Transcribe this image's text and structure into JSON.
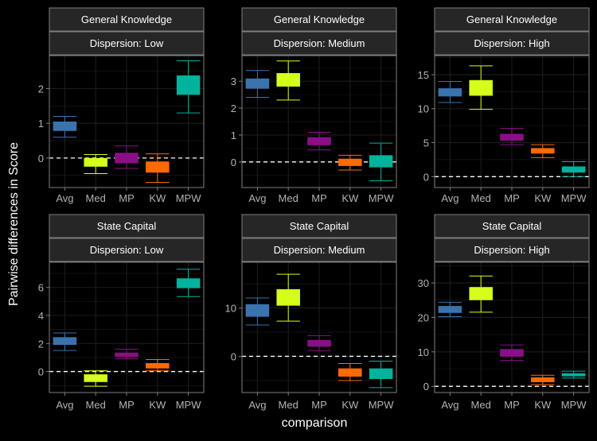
{
  "figure": {
    "ylabel": "Pairwise differences in Score",
    "xlabel": "comparison"
  },
  "colors": {
    "background": "#000000",
    "panel_border": "#7f7f7f",
    "strip_fill": "#262626",
    "strip_text": "#ffffff",
    "grid": "#1c1c1c",
    "tick_text": "#b3b3b3",
    "axis_title": "#ffffff",
    "zero_line": "#ffffff",
    "Avg": "#3a73ad",
    "Med": "#d4ff1a",
    "MP": "#8c0e86",
    "KW": "#ff6a00",
    "MPW": "#00b39c"
  },
  "chart_data": [
    {
      "type": "boxplot",
      "strip_top": "General Knowledge",
      "strip_bottom": "Dispersion: Low",
      "categories": [
        "Avg",
        "Med",
        "MP",
        "KW",
        "MPW"
      ],
      "ylim": [
        -0.85,
        2.95
      ],
      "yticks": [
        0,
        1,
        2
      ],
      "boxes": [
        {
          "min": 0.6,
          "q1": 0.78,
          "median": 0.93,
          "q3": 1.05,
          "max": 1.2
        },
        {
          "min": -0.45,
          "q1": -0.25,
          "median": -0.1,
          "q3": 0.0,
          "max": 0.1
        },
        {
          "min": -0.3,
          "q1": -0.15,
          "median": 0.05,
          "q3": 0.15,
          "max": 0.35
        },
        {
          "min": -0.7,
          "q1": -0.42,
          "median": -0.2,
          "q3": -0.1,
          "max": 0.12
        },
        {
          "min": 1.3,
          "q1": 1.82,
          "median": 2.15,
          "q3": 2.38,
          "max": 2.8
        }
      ]
    },
    {
      "type": "boxplot",
      "strip_top": "General Knowledge",
      "strip_bottom": "Dispersion: Medium",
      "categories": [
        "Avg",
        "Med",
        "MP",
        "KW",
        "MPW"
      ],
      "ylim": [
        -0.95,
        3.95
      ],
      "yticks": [
        0,
        1,
        2,
        3
      ],
      "boxes": [
        {
          "min": 2.4,
          "q1": 2.72,
          "median": 2.95,
          "q3": 3.1,
          "max": 3.4
        },
        {
          "min": 2.3,
          "q1": 2.8,
          "median": 3.0,
          "q3": 3.3,
          "max": 3.75
        },
        {
          "min": 0.45,
          "q1": 0.62,
          "median": 0.8,
          "q3": 0.92,
          "max": 1.1
        },
        {
          "min": -0.3,
          "q1": -0.15,
          "median": 0.0,
          "q3": 0.12,
          "max": 0.25
        },
        {
          "min": -0.7,
          "q1": -0.2,
          "median": 0.0,
          "q3": 0.25,
          "max": 0.7
        }
      ]
    },
    {
      "type": "boxplot",
      "strip_top": "General Knowledge",
      "strip_bottom": "Dispersion: High",
      "categories": [
        "Avg",
        "Med",
        "MP",
        "KW",
        "MPW"
      ],
      "ylim": [
        -1.6,
        17.8
      ],
      "yticks": [
        0,
        5,
        10,
        15
      ],
      "boxes": [
        {
          "min": 10.9,
          "q1": 11.8,
          "median": 12.3,
          "q3": 13.0,
          "max": 14.0
        },
        {
          "min": 9.9,
          "q1": 11.9,
          "median": 12.5,
          "q3": 14.2,
          "max": 16.3
        },
        {
          "min": 4.7,
          "q1": 5.3,
          "median": 5.8,
          "q3": 6.3,
          "max": 7.1
        },
        {
          "min": 2.8,
          "q1": 3.4,
          "median": 3.8,
          "q3": 4.2,
          "max": 4.7
        },
        {
          "min": 0.0,
          "q1": 0.6,
          "median": 1.1,
          "q3": 1.5,
          "max": 2.2
        }
      ]
    },
    {
      "type": "boxplot",
      "strip_top": "State Capital",
      "strip_bottom": "Dispersion: Low",
      "categories": [
        "Avg",
        "Med",
        "MP",
        "KW",
        "MPW"
      ],
      "ylim": [
        -1.5,
        7.8
      ],
      "yticks": [
        0,
        2,
        4,
        6
      ],
      "boxes": [
        {
          "min": 1.5,
          "q1": 1.9,
          "median": 2.2,
          "q3": 2.45,
          "max": 2.75
        },
        {
          "min": -1.05,
          "q1": -0.75,
          "median": -0.45,
          "q3": -0.2,
          "max": 0.05
        },
        {
          "min": 0.9,
          "q1": 1.05,
          "median": 1.2,
          "q3": 1.35,
          "max": 1.6
        },
        {
          "min": 0.05,
          "q1": 0.22,
          "median": 0.38,
          "q3": 0.6,
          "max": 0.85
        },
        {
          "min": 5.35,
          "q1": 5.95,
          "median": 6.3,
          "q3": 6.65,
          "max": 7.3
        }
      ]
    },
    {
      "type": "boxplot",
      "strip_top": "State Capital",
      "strip_bottom": "Dispersion: Medium",
      "categories": [
        "Avg",
        "Med",
        "MP",
        "KW",
        "MPW"
      ],
      "ylim": [
        -7.5,
        19.5
      ],
      "yticks": [
        0,
        10
      ],
      "boxes": [
        {
          "min": 6.5,
          "q1": 8.2,
          "median": 9.5,
          "q3": 10.8,
          "max": 12.1
        },
        {
          "min": 7.3,
          "q1": 10.5,
          "median": 12.2,
          "q3": 13.9,
          "max": 17.0
        },
        {
          "min": 1.2,
          "q1": 2.0,
          "median": 2.6,
          "q3": 3.4,
          "max": 4.3
        },
        {
          "min": -5.0,
          "q1": -4.2,
          "median": -3.3,
          "q3": -2.5,
          "max": -1.5
        },
        {
          "min": -6.5,
          "q1": -4.7,
          "median": -3.5,
          "q3": -2.5,
          "max": -1.0
        }
      ]
    },
    {
      "type": "boxplot",
      "strip_top": "State Capital",
      "strip_bottom": "Dispersion: High",
      "categories": [
        "Avg",
        "Med",
        "MP",
        "KW",
        "MPW"
      ],
      "ylim": [
        -1.8,
        36.0
      ],
      "yticks": [
        0,
        10,
        20,
        30
      ],
      "boxes": [
        {
          "min": 20.2,
          "q1": 21.3,
          "median": 22.2,
          "q3": 23.3,
          "max": 24.4
        },
        {
          "min": 21.5,
          "q1": 25.0,
          "median": 27.0,
          "q3": 28.8,
          "max": 32.0
        },
        {
          "min": 7.5,
          "q1": 8.6,
          "median": 9.6,
          "q3": 10.8,
          "max": 12.0
        },
        {
          "min": 0.5,
          "q1": 1.2,
          "median": 1.8,
          "q3": 2.6,
          "max": 3.2
        },
        {
          "min": 2.4,
          "q1": 2.9,
          "median": 3.3,
          "q3": 3.8,
          "max": 4.4
        }
      ]
    }
  ]
}
